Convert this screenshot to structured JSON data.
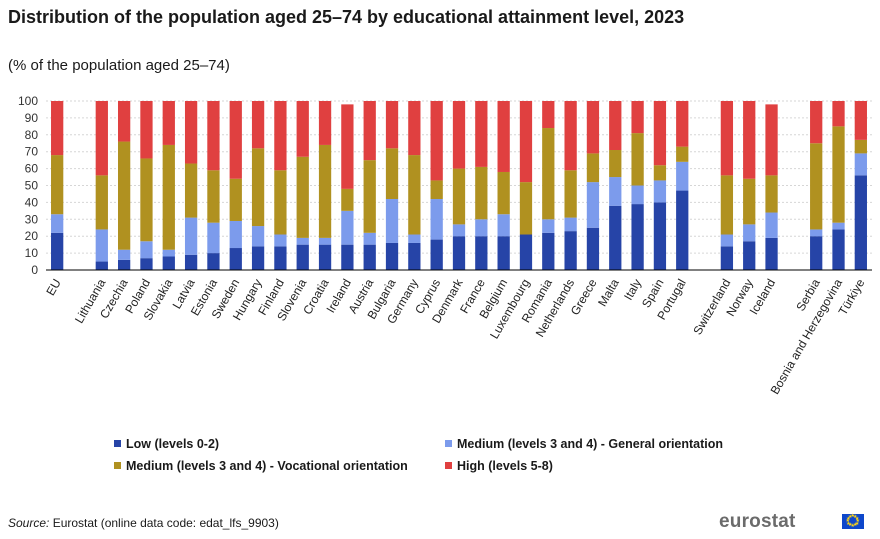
{
  "title": "Distribution of the population aged 25–74 by educational attainment level, 2023",
  "subtitle": "(% of the population  aged 25–74)",
  "colors": {
    "low": "#2644a7",
    "medium_general": "#7c9bec",
    "medium_vocational": "#b09120",
    "high": "#e04040"
  },
  "chart_data": {
    "type": "bar",
    "stacked": true,
    "title": "Distribution of the population aged 25–74 by educational attainment level, 2023",
    "ylabel": "% of the population aged 25–74",
    "ylim": [
      0,
      100
    ],
    "yticks": [
      0,
      10,
      20,
      30,
      40,
      50,
      60,
      70,
      80,
      90,
      100
    ],
    "groups": [
      [
        "EU"
      ],
      [
        "Lithuania",
        "Czechia",
        "Poland",
        "Slovakia",
        "Latvia",
        "Estonia",
        "Sweden",
        "Hungary",
        "Finland",
        "Slovenia",
        "Croatia",
        "Ireland",
        "Austria",
        "Bulgaria",
        "Germany",
        "Cyprus",
        "Denmark",
        "France",
        "Belgium",
        "Luxembourg",
        "Romania",
        "Netherlands",
        "Greece",
        "Malta",
        "Italy",
        "Spain",
        "Portugal"
      ],
      [
        "Switzerland",
        "Norway",
        "Iceland"
      ],
      [
        "Serbia",
        "Bosnia and Herzegovina",
        "Türkiye"
      ]
    ],
    "categories": [
      "EU",
      "Lithuania",
      "Czechia",
      "Poland",
      "Slovakia",
      "Latvia",
      "Estonia",
      "Sweden",
      "Hungary",
      "Finland",
      "Slovenia",
      "Croatia",
      "Ireland",
      "Austria",
      "Bulgaria",
      "Germany",
      "Cyprus",
      "Denmark",
      "France",
      "Belgium",
      "Luxembourg",
      "Romania",
      "Netherlands",
      "Greece",
      "Malta",
      "Italy",
      "Spain",
      "Portugal",
      "Switzerland",
      "Norway",
      "Iceland",
      "Serbia",
      "Bosnia and Herzegovina",
      "Türkiye"
    ],
    "series": [
      {
        "name": "Low (levels 0-2)",
        "key": "low",
        "values": [
          22,
          5,
          6,
          7,
          8,
          9,
          10,
          13,
          14,
          14,
          15,
          15,
          15,
          15,
          16,
          16,
          18,
          20,
          20,
          20,
          21,
          22,
          23,
          25,
          38,
          39,
          40,
          47,
          14,
          17,
          19,
          20,
          24,
          56
        ]
      },
      {
        "name": "Medium (levels 3 and 4) - General orientation",
        "key": "medium_general",
        "values": [
          11,
          19,
          6,
          10,
          4,
          22,
          18,
          16,
          12,
          7,
          4,
          4,
          20,
          7,
          26,
          5,
          24,
          7,
          10,
          13,
          0,
          8,
          8,
          27,
          17,
          11,
          13,
          17,
          7,
          10,
          15,
          4,
          4,
          13
        ]
      },
      {
        "name": "Medium (levels 3 and 4) - Vocational orientation",
        "key": "medium_vocational",
        "values": [
          35,
          32,
          64,
          49,
          62,
          32,
          31,
          25,
          46,
          38,
          48,
          55,
          13,
          43,
          30,
          47,
          11,
          33,
          31,
          25,
          31,
          54,
          28,
          17,
          16,
          31,
          9,
          9,
          35,
          27,
          22,
          51,
          57,
          8
        ]
      },
      {
        "name": "High (levels 5-8)",
        "key": "high",
        "values": [
          32,
          44,
          24,
          34,
          26,
          37,
          41,
          46,
          28,
          41,
          33,
          26,
          50,
          35,
          28,
          32,
          47,
          40,
          39,
          42,
          48,
          16,
          41,
          31,
          29,
          19,
          38,
          27,
          44,
          46,
          42,
          25,
          15,
          23
        ]
      }
    ],
    "legend": {
      "position": "bottom",
      "items": [
        {
          "label": "Low (levels 0-2)",
          "key": "low"
        },
        {
          "label": "Medium (levels 3 and 4) - General orientation",
          "key": "medium_general"
        },
        {
          "label": "Medium (levels 3 and 4) - Vocational orientation",
          "key": "medium_vocational"
        },
        {
          "label": "High (levels 5-8)",
          "key": "high"
        }
      ]
    },
    "grid": true
  },
  "footer": {
    "source_label": "Source:",
    "source_text": " Eurostat (online data code: edat_lfs_9903)",
    "logo_text": "eurostat"
  }
}
